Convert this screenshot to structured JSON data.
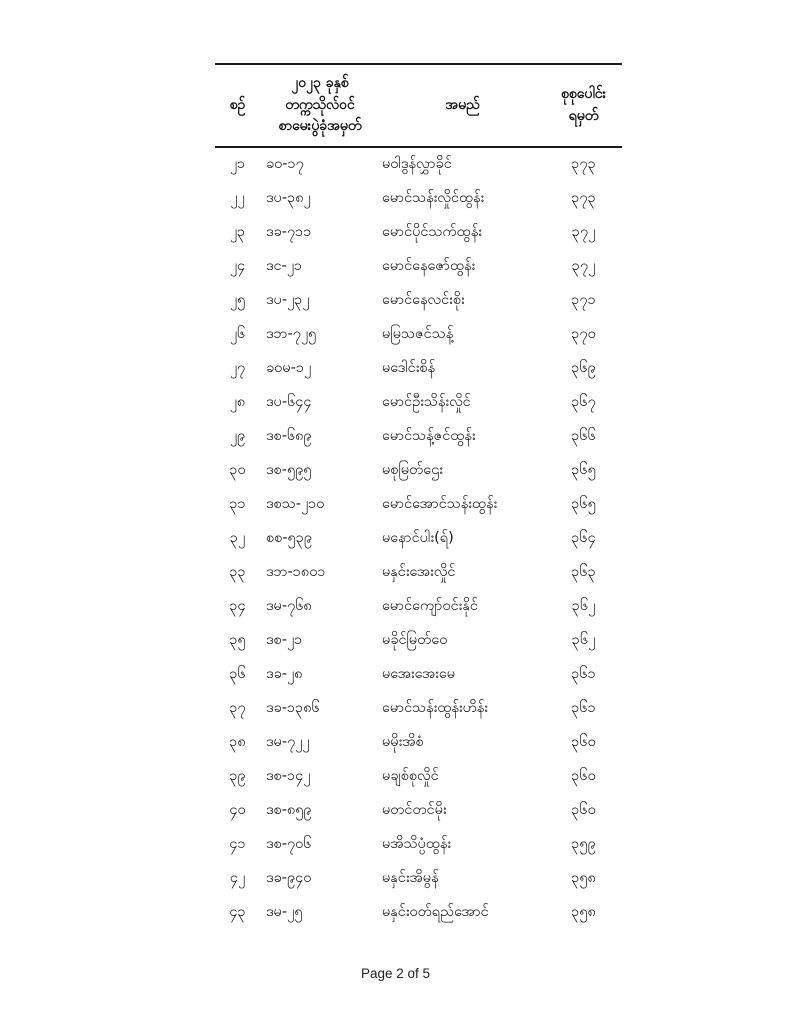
{
  "document": {
    "table": {
      "headers": {
        "serial": "စဉ်",
        "roll_line1": "၂၀၂၃ ခုနှစ်",
        "roll_line2": "တက္ကသိုလ်ဝင်",
        "roll_line3": "စာမေးပွဲခုံအမှတ်",
        "name": "အမည်",
        "total_line1": "စုစုပေါင်း",
        "total_line2": "ရမှတ်"
      },
      "rows": [
        {
          "serial": "၂၁",
          "roll": "ခဝ-၁၇",
          "name": "မဝါဒွန်လွှာခိုင်",
          "marks": "၃၇၃"
        },
        {
          "serial": "၂၂",
          "roll": "ဒပ-၃၈၂",
          "name": "မောင်သန်းလှိုင်ထွန်း",
          "marks": "၃၇၃"
        },
        {
          "serial": "၂၃",
          "roll": "ဒခ-၇၁၁",
          "name": "မောင်ပိုင်သက်ထွန်း",
          "marks": "၃၇၂"
        },
        {
          "serial": "၂၄",
          "roll": "ဒင-၂၁",
          "name": "မောင်နေဇော်ထွန်း",
          "marks": "၃၇၂"
        },
        {
          "serial": "၂၅",
          "roll": "ဒပ-၂၃၂",
          "name": "မောင်နေလင်းစိုး",
          "marks": "၃၇၁"
        },
        {
          "serial": "၂၆",
          "roll": "ဒဘ-၇၂၅",
          "name": "မမြသဇင်သန့်",
          "marks": "၃၇၀"
        },
        {
          "serial": "၂၇",
          "roll": "ခဝမ-၁၂",
          "name": "မဒေါင်းစိန်",
          "marks": "၃၆၉"
        },
        {
          "serial": "၂၈",
          "roll": "ဒပ-၆၄၄",
          "name": "မောင်ဦးသိန်းလှိုင်",
          "marks": "၃၆၇"
        },
        {
          "serial": "၂၉",
          "roll": "ဒစ-၆၈၉",
          "name": "မောင်သန့်ဇင်ထွန်း",
          "marks": "၃၆၆"
        },
        {
          "serial": "၃၀",
          "roll": "ဒစ-၅၉၅",
          "name": "မစုမြတ်ဌေး",
          "marks": "၃၆၅"
        },
        {
          "serial": "၃၁",
          "roll": "ဒစသ-၂၁၀",
          "name": "မောင်အောင်သန်းထွန်း",
          "marks": "၃၆၅"
        },
        {
          "serial": "၃၂",
          "roll": "စစ-၅၃၉",
          "name": "မနောင်ပါး(ရ်)",
          "marks": "၃၆၄"
        },
        {
          "serial": "၃၃",
          "roll": "ဒဘ-၁၈၀၁",
          "name": "မနှင်းအေးလှိုင်",
          "marks": "၃၆၃"
        },
        {
          "serial": "၃၄",
          "roll": "ဒမ-၇၆၈",
          "name": "မောင်ကျော်ဝင်းနိုင်",
          "marks": "၃၆၂"
        },
        {
          "serial": "၃၅",
          "roll": "ဒစ-၂၁",
          "name": "မခိုင်မြတ်ဝေ",
          "marks": "၃၆၂"
        },
        {
          "serial": "၃၆",
          "roll": "ဒခ-၂၈",
          "name": "မအေးအေးမေ",
          "marks": "၃၆၁"
        },
        {
          "serial": "၃၇",
          "roll": "ဒခ-၁၃၈၆",
          "name": "မောင်သန်းထွန်းဟိန်း",
          "marks": "၃၆၁"
        },
        {
          "serial": "၃၈",
          "roll": "ဒမ-၇၂၂",
          "name": "မမိုးအိစံ",
          "marks": "၃၆၀"
        },
        {
          "serial": "၃၉",
          "roll": "ဒစ-၁၄၂",
          "name": "မချစ်စုလှိုင်",
          "marks": "၃၆၀"
        },
        {
          "serial": "၄၀",
          "roll": "ဒစ-၈၅၉",
          "name": "မတင်တင်မိုး",
          "marks": "၃၆၀"
        },
        {
          "serial": "၄၁",
          "roll": "ဒစ-၇၀၆",
          "name": "မအိသိပ္ပံထွန်း",
          "marks": "၃၅၉"
        },
        {
          "serial": "၄၂",
          "roll": "ဒခ-၉၄၀",
          "name": "မနှင်းအိမွန်",
          "marks": "၃၅၈"
        },
        {
          "serial": "၄၃",
          "roll": "ဒမ-၂၅",
          "name": "မနှင်းဝတ်ရည်အောင်",
          "marks": "၃၅၈"
        }
      ]
    },
    "footer": {
      "page_label": "Page 2 of 5"
    }
  }
}
